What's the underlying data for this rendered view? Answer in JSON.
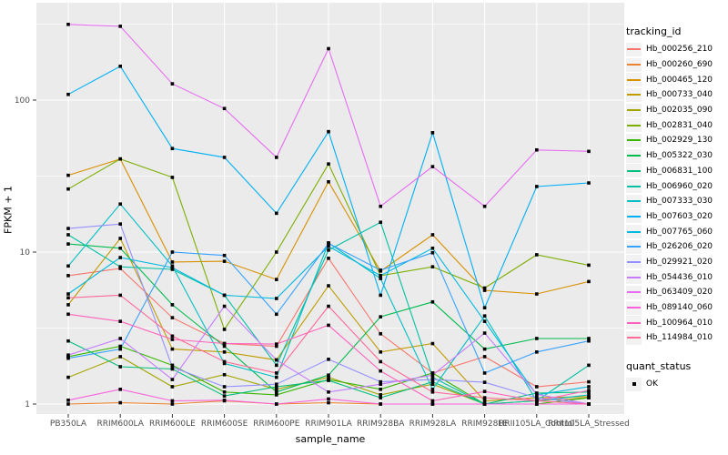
{
  "chart_data": {
    "type": "line",
    "title": "",
    "xlabel": "sample_name",
    "ylabel": "FPKM + 1",
    "x_scale": "categorical",
    "y_scale": "log10",
    "y_ticks": [
      1,
      10,
      100
    ],
    "y_minor_ticks": [
      3.16,
      31.6,
      316
    ],
    "ylim": [
      0.87,
      420
    ],
    "grid": true,
    "legend_position": "right",
    "point_marker": {
      "shape": "square",
      "color": "#000000",
      "meaning": "OK"
    },
    "categories": [
      "PB350LA",
      "RRIM600LA",
      "RRIM600LE",
      "RRIM600SE",
      "RRIM600PE",
      "RRIM901LA",
      "RRIM928BA",
      "RRIM928LA",
      "RRIM928LE",
      "RRII105LA_Control",
      "RRII105LA_Stressed"
    ],
    "series": [
      {
        "name": "Hb_000256_210",
        "color": "#F8766D",
        "values": [
          7.0,
          7.8,
          3.7,
          2.5,
          2.4,
          9.1,
          2.9,
          1.6,
          2.05,
          1.3,
          1.4
        ]
      },
      {
        "name": "Hb_000260_690",
        "color": "#EA8331",
        "values": [
          1.0,
          1.02,
          1.0,
          1.05,
          1.0,
          1.02,
          1.0,
          1.0,
          1.0,
          1.0,
          1.0
        ]
      },
      {
        "name": "Hb_000465_120",
        "color": "#D89000",
        "values": [
          32,
          41,
          8.6,
          8.7,
          6.6,
          29,
          7.5,
          13,
          5.6,
          5.3,
          6.4
        ]
      },
      {
        "name": "Hb_000733_040",
        "color": "#C09B00",
        "values": [
          4.5,
          12.3,
          2.3,
          2.2,
          1.95,
          6.0,
          2.2,
          2.5,
          1.05,
          1.1,
          1.12
        ]
      },
      {
        "name": "Hb_002035_090",
        "color": "#A3A500",
        "values": [
          1.5,
          2.05,
          1.3,
          1.56,
          1.25,
          1.5,
          1.15,
          1.35,
          1.0,
          1.05,
          1.1
        ]
      },
      {
        "name": "Hb_002831_040",
        "color": "#7CAE00",
        "values": [
          26,
          41,
          31,
          3.1,
          10,
          38,
          7.0,
          8.0,
          5.8,
          9.6,
          8.2
        ]
      },
      {
        "name": "Hb_002929_130",
        "color": "#39B600",
        "values": [
          2.05,
          2.4,
          1.8,
          1.2,
          1.15,
          1.45,
          1.25,
          1.6,
          1.0,
          1.0,
          1.1
        ]
      },
      {
        "name": "Hb_005322_030",
        "color": "#00BB4E",
        "values": [
          11.3,
          10.6,
          4.5,
          2.4,
          1.2,
          1.55,
          3.75,
          4.7,
          2.3,
          2.7,
          2.7
        ]
      },
      {
        "name": "Hb_006831_100",
        "color": "#00BF7D",
        "values": [
          2.6,
          1.76,
          1.7,
          1.13,
          1.3,
          1.43,
          1.1,
          1.4,
          1.0,
          1.18,
          1.2
        ]
      },
      {
        "name": "Hb_006960_020",
        "color": "#00C1A3",
        "values": [
          13,
          8.0,
          7.7,
          5.2,
          1.8,
          10.3,
          15.7,
          1.5,
          1.0,
          1.05,
          1.8
        ]
      },
      {
        "name": "Hb_007333_030",
        "color": "#00BFC4",
        "values": [
          8.1,
          20.7,
          8.1,
          1.85,
          1.5,
          11.5,
          6.7,
          1.25,
          3.8,
          1.05,
          1.15
        ]
      },
      {
        "name": "Hb_007603_020",
        "color": "#00B0F6",
        "values": [
          109,
          167,
          48,
          42,
          18,
          62,
          5.2,
          61,
          4.3,
          27,
          28.5
        ]
      },
      {
        "name": "Hb_007765_060",
        "color": "#00BAE0",
        "values": [
          5.3,
          9.2,
          7.9,
          5.2,
          4.95,
          10.9,
          7.0,
          10.6,
          3.5,
          1.15,
          1.3
        ]
      },
      {
        "name": "Hb_026206_020",
        "color": "#35A2FF",
        "values": [
          2.0,
          2.3,
          10.0,
          9.5,
          3.9,
          11.4,
          7.6,
          9.9,
          1.6,
          2.2,
          2.6
        ]
      },
      {
        "name": "Hb_029921_020",
        "color": "#9590FF",
        "values": [
          14.3,
          15.3,
          1.75,
          1.3,
          1.35,
          1.97,
          1.4,
          1.45,
          1.39,
          1.1,
          1.0
        ]
      },
      {
        "name": "Hb_054436_010",
        "color": "#C77CFF",
        "values": [
          2.1,
          2.7,
          1.45,
          4.4,
          1.95,
          1.2,
          1.35,
          1.55,
          2.93,
          1.16,
          1.0
        ]
      },
      {
        "name": "Hb_063409_020",
        "color": "#E76BF3",
        "values": [
          315,
          306,
          128,
          88,
          42,
          218,
          20,
          36.5,
          20,
          47,
          46
        ]
      },
      {
        "name": "Hb_089140_060",
        "color": "#FA62DB",
        "values": [
          1.06,
          1.25,
          1.05,
          1.06,
          1.0,
          1.08,
          1.0,
          1.0,
          1.0,
          1.0,
          1.0
        ]
      },
      {
        "name": "Hb_100964_010",
        "color": "#FF62BC",
        "values": [
          3.9,
          3.5,
          2.66,
          2.5,
          2.48,
          3.3,
          1.65,
          1.05,
          1.21,
          1.05,
          1.23
        ]
      },
      {
        "name": "Hb_114984_010",
        "color": "#FF6A98",
        "values": [
          5.0,
          5.2,
          2.8,
          1.9,
          1.6,
          4.4,
          1.9,
          1.2,
          1.1,
          1.05,
          1.0
        ]
      }
    ]
  },
  "legend_tracking": {
    "title": "tracking_id"
  },
  "legend_quant": {
    "title": "quant_status",
    "items": [
      {
        "label": "OK"
      }
    ]
  },
  "colors": {
    "panel_bg": "#EBEBEB",
    "grid": "#FFFFFF",
    "tick_label": "#4D4D4D",
    "tick_mark": "#333333",
    "axis_title": "#000000",
    "legend_key_bg": "#F2F2F2",
    "point": "#000000"
  }
}
